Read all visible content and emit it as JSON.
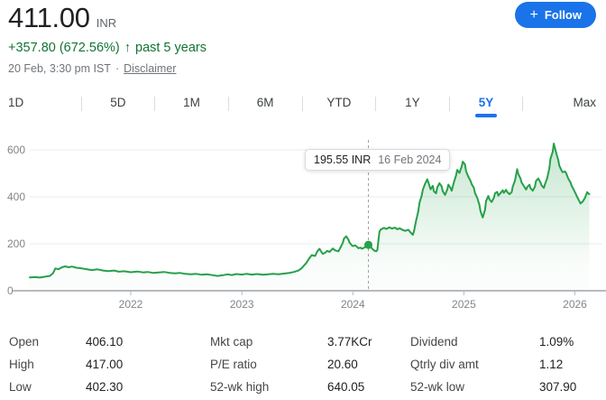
{
  "header": {
    "price": "411.00",
    "currency": "INR",
    "change": "+357.80 (672.56%)",
    "change_arrow": "↑",
    "change_period": "past 5 years",
    "timestamp": "20 Feb, 3:30 pm IST",
    "separator": "·",
    "disclaimer_label": "Disclaimer",
    "follow": {
      "plus": "+",
      "label": "Follow"
    }
  },
  "tabs": {
    "items": [
      "1D",
      "5D",
      "1M",
      "6M",
      "YTD",
      "1Y",
      "5Y",
      "Max"
    ],
    "active": "5Y"
  },
  "tooltip": {
    "price": "195.55 INR",
    "date": "16 Feb 2024"
  },
  "chart_data": {
    "type": "line",
    "title": "5Y price history",
    "line_color": "#26a04a",
    "x_axis": {
      "min": 2021.09,
      "max": 2026.15
    },
    "y_axis": {
      "min": 0,
      "max": 600
    },
    "x_ticks": [
      2022,
      2023,
      2024,
      2025,
      2026
    ],
    "y_ticks": [
      0,
      200,
      400,
      600
    ],
    "highlight": {
      "t": 2024.14,
      "value": 195.55
    },
    "points": [
      [
        2021.09,
        57
      ],
      [
        2021.14,
        58
      ],
      [
        2021.18,
        56
      ],
      [
        2021.23,
        60
      ],
      [
        2021.27,
        63
      ],
      [
        2021.3,
        75
      ],
      [
        2021.32,
        95
      ],
      [
        2021.35,
        92
      ],
      [
        2021.38,
        100
      ],
      [
        2021.41,
        104
      ],
      [
        2021.44,
        100
      ],
      [
        2021.47,
        103
      ],
      [
        2021.51,
        98
      ],
      [
        2021.56,
        95
      ],
      [
        2021.6,
        92
      ],
      [
        2021.65,
        88
      ],
      [
        2021.7,
        91
      ],
      [
        2021.75,
        86
      ],
      [
        2021.8,
        84
      ],
      [
        2021.85,
        86
      ],
      [
        2021.89,
        81
      ],
      [
        2021.94,
        83
      ],
      [
        2022.0,
        79
      ],
      [
        2022.06,
        82
      ],
      [
        2022.11,
        78
      ],
      [
        2022.15,
        80
      ],
      [
        2022.2,
        76
      ],
      [
        2022.25,
        78
      ],
      [
        2022.3,
        80
      ],
      [
        2022.35,
        76
      ],
      [
        2022.4,
        74
      ],
      [
        2022.44,
        76
      ],
      [
        2022.49,
        72
      ],
      [
        2022.54,
        70
      ],
      [
        2022.59,
        72
      ],
      [
        2022.64,
        68
      ],
      [
        2022.69,
        70
      ],
      [
        2022.74,
        66
      ],
      [
        2022.78,
        63
      ],
      [
        2022.83,
        66
      ],
      [
        2022.87,
        70
      ],
      [
        2022.91,
        67
      ],
      [
        2022.95,
        71
      ],
      [
        2023.0,
        69
      ],
      [
        2023.04,
        72
      ],
      [
        2023.09,
        69
      ],
      [
        2023.14,
        71
      ],
      [
        2023.19,
        68
      ],
      [
        2023.24,
        70
      ],
      [
        2023.28,
        72
      ],
      [
        2023.33,
        70
      ],
      [
        2023.38,
        73
      ],
      [
        2023.43,
        76
      ],
      [
        2023.47,
        80
      ],
      [
        2023.51,
        86
      ],
      [
        2023.54,
        97
      ],
      [
        2023.58,
        118
      ],
      [
        2023.61,
        140
      ],
      [
        2023.63,
        152
      ],
      [
        2023.66,
        148
      ],
      [
        2023.68,
        168
      ],
      [
        2023.7,
        179
      ],
      [
        2023.71,
        170
      ],
      [
        2023.73,
        157
      ],
      [
        2023.75,
        162
      ],
      [
        2023.77,
        170
      ],
      [
        2023.79,
        165
      ],
      [
        2023.82,
        180
      ],
      [
        2023.84,
        172
      ],
      [
        2023.87,
        168
      ],
      [
        2023.89,
        185
      ],
      [
        2023.91,
        205
      ],
      [
        2023.92,
        222
      ],
      [
        2023.94,
        232
      ],
      [
        2023.96,
        218
      ],
      [
        2023.97,
        205
      ],
      [
        2023.99,
        194
      ],
      [
        2024.0,
        190
      ],
      [
        2024.02,
        193
      ],
      [
        2024.04,
        186
      ],
      [
        2024.05,
        181
      ],
      [
        2024.07,
        184
      ],
      [
        2024.08,
        179
      ],
      [
        2024.1,
        183
      ],
      [
        2024.12,
        189
      ],
      [
        2024.14,
        195.55
      ],
      [
        2024.16,
        190
      ],
      [
        2024.17,
        181
      ],
      [
        2024.19,
        172
      ],
      [
        2024.21,
        168
      ],
      [
        2024.22,
        173
      ],
      [
        2024.24,
        252
      ],
      [
        2024.25,
        260
      ],
      [
        2024.28,
        268
      ],
      [
        2024.3,
        263
      ],
      [
        2024.33,
        270
      ],
      [
        2024.35,
        265
      ],
      [
        2024.38,
        269
      ],
      [
        2024.4,
        262
      ],
      [
        2024.42,
        266
      ],
      [
        2024.45,
        259
      ],
      [
        2024.47,
        255
      ],
      [
        2024.5,
        260
      ],
      [
        2024.52,
        248
      ],
      [
        2024.54,
        238
      ],
      [
        2024.55,
        252
      ],
      [
        2024.57,
        300
      ],
      [
        2024.59,
        340
      ],
      [
        2024.6,
        375
      ],
      [
        2024.62,
        405
      ],
      [
        2024.63,
        430
      ],
      [
        2024.65,
        455
      ],
      [
        2024.67,
        475
      ],
      [
        2024.68,
        462
      ],
      [
        2024.7,
        432
      ],
      [
        2024.72,
        447
      ],
      [
        2024.73,
        423
      ],
      [
        2024.75,
        415
      ],
      [
        2024.76,
        440
      ],
      [
        2024.78,
        458
      ],
      [
        2024.8,
        444
      ],
      [
        2024.81,
        424
      ],
      [
        2024.83,
        408
      ],
      [
        2024.85,
        430
      ],
      [
        2024.86,
        452
      ],
      [
        2024.88,
        438
      ],
      [
        2024.89,
        426
      ],
      [
        2024.91,
        462
      ],
      [
        2024.93,
        492
      ],
      [
        2024.94,
        515
      ],
      [
        2024.96,
        502
      ],
      [
        2024.98,
        528
      ],
      [
        2024.99,
        550
      ],
      [
        2025.01,
        538
      ],
      [
        2025.02,
        508
      ],
      [
        2025.04,
        486
      ],
      [
        2025.06,
        468
      ],
      [
        2025.07,
        455
      ],
      [
        2025.09,
        438
      ],
      [
        2025.1,
        416
      ],
      [
        2025.12,
        396
      ],
      [
        2025.14,
        366
      ],
      [
        2025.15,
        338
      ],
      [
        2025.17,
        312
      ],
      [
        2025.19,
        344
      ],
      [
        2025.2,
        382
      ],
      [
        2025.22,
        404
      ],
      [
        2025.23,
        390
      ],
      [
        2025.25,
        378
      ],
      [
        2025.27,
        396
      ],
      [
        2025.28,
        415
      ],
      [
        2025.3,
        421
      ],
      [
        2025.31,
        405
      ],
      [
        2025.33,
        416
      ],
      [
        2025.35,
        428
      ],
      [
        2025.36,
        417
      ],
      [
        2025.38,
        430
      ],
      [
        2025.39,
        421
      ],
      [
        2025.41,
        411
      ],
      [
        2025.43,
        420
      ],
      [
        2025.44,
        444
      ],
      [
        2025.46,
        468
      ],
      [
        2025.48,
        518
      ],
      [
        2025.49,
        498
      ],
      [
        2025.51,
        478
      ],
      [
        2025.52,
        461
      ],
      [
        2025.54,
        446
      ],
      [
        2025.56,
        431
      ],
      [
        2025.57,
        441
      ],
      [
        2025.59,
        452
      ],
      [
        2025.6,
        437
      ],
      [
        2025.62,
        426
      ],
      [
        2025.64,
        443
      ],
      [
        2025.65,
        468
      ],
      [
        2025.67,
        478
      ],
      [
        2025.69,
        461
      ],
      [
        2025.7,
        449
      ],
      [
        2025.72,
        438
      ],
      [
        2025.73,
        453
      ],
      [
        2025.75,
        480
      ],
      [
        2025.77,
        522
      ],
      [
        2025.78,
        562
      ],
      [
        2025.8,
        592
      ],
      [
        2025.81,
        627
      ],
      [
        2025.83,
        590
      ],
      [
        2025.85,
        556
      ],
      [
        2025.86,
        532
      ],
      [
        2025.88,
        512
      ],
      [
        2025.89,
        505
      ],
      [
        2025.91,
        508
      ],
      [
        2025.92,
        502
      ],
      [
        2025.94,
        478
      ],
      [
        2025.96,
        462
      ],
      [
        2025.97,
        448
      ],
      [
        2025.99,
        430
      ],
      [
        2026.0,
        420
      ],
      [
        2026.02,
        400
      ],
      [
        2026.04,
        381
      ],
      [
        2026.05,
        372
      ],
      [
        2026.07,
        380
      ],
      [
        2026.09,
        395
      ],
      [
        2026.11,
        420
      ],
      [
        2026.13,
        411
      ]
    ]
  },
  "stats": {
    "col1": [
      {
        "label": "Open",
        "value": "406.10"
      },
      {
        "label": "High",
        "value": "417.00"
      },
      {
        "label": "Low",
        "value": "402.30"
      }
    ],
    "col2": [
      {
        "label": "Mkt cap",
        "value": "3.77KCr"
      },
      {
        "label": "P/E ratio",
        "value": "20.60"
      },
      {
        "label": "52-wk high",
        "value": "640.05"
      }
    ],
    "col3": [
      {
        "label": "Dividend",
        "value": "1.09%"
      },
      {
        "label": "Qtrly div amt",
        "value": "1.12"
      },
      {
        "label": "52-wk low",
        "value": "307.90"
      }
    ]
  },
  "colors": {
    "accent_blue": "#1a73e8",
    "positive_green": "#137333",
    "line_green": "#26a04a"
  }
}
